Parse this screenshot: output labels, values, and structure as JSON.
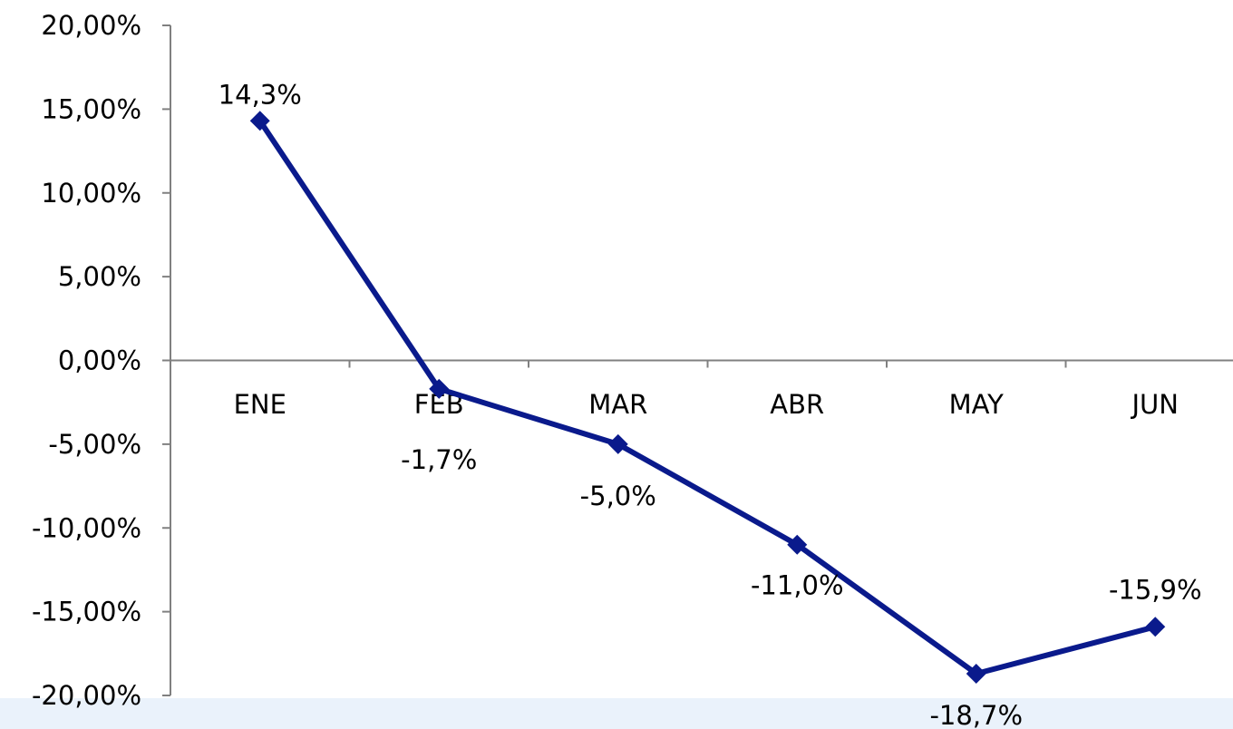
{
  "chart_data": {
    "type": "line",
    "categories": [
      "ENE",
      "FEB",
      "MAR",
      "ABR",
      "MAY",
      "JUN"
    ],
    "series": [
      {
        "values": [
          14.3,
          -1.7,
          -5.0,
          -11.0,
          -18.7,
          -15.9
        ],
        "data_labels": [
          "14,3%",
          "-1,7%",
          "-5,0%",
          "-11,0%",
          "-18,7%",
          "-15,9%"
        ],
        "color": "#0a1a8c"
      }
    ],
    "ylim": [
      -20,
      20
    ],
    "y_ticks": [
      20,
      15,
      10,
      5,
      0,
      -5,
      -10,
      -15,
      -20
    ],
    "y_tick_labels": [
      "20,00%",
      "15,00%",
      "10,00%",
      "5,00%",
      "0,00%",
      "-5,00%",
      "-10,00%",
      "-15,00%",
      "-20,00%"
    ],
    "title": "",
    "xlabel": "",
    "ylabel": "",
    "grid": false,
    "legend": "none",
    "axis_color": "#808080"
  }
}
